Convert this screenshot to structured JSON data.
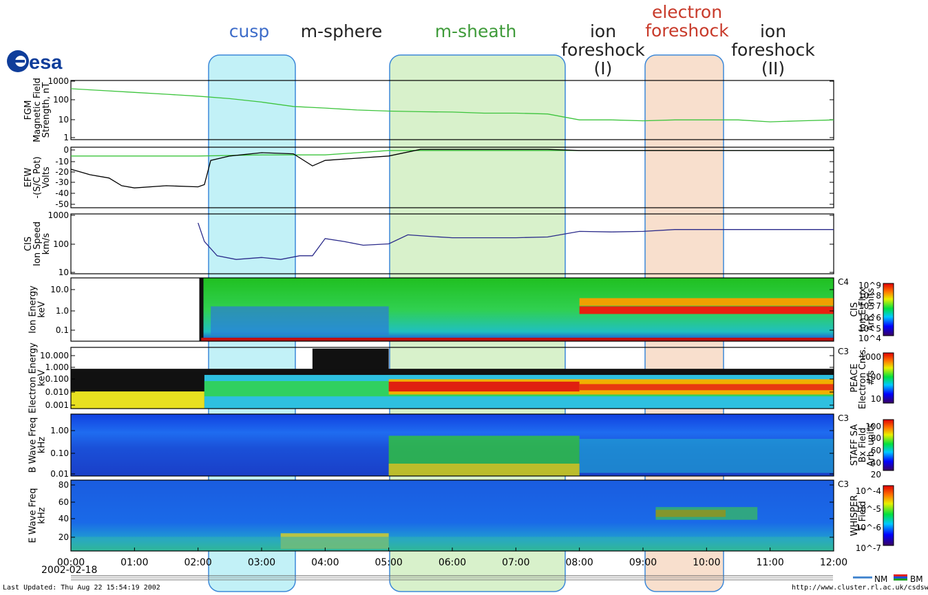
{
  "logo": {
    "text": "esa"
  },
  "regions": [
    {
      "label": "cusp",
      "color": "#3d6cc9",
      "box_fill": "#8fe6f1"
    },
    {
      "label": "m-sphere",
      "color": "#222222",
      "box_fill": ""
    },
    {
      "label": "m-sheath",
      "color": "#3f9b3a",
      "box_fill": "#b8e6a0"
    },
    {
      "label": "ion foreshock (I)",
      "lines": [
        "ion",
        "foreshock",
        "(I)"
      ],
      "color": "#222222",
      "box_fill": ""
    },
    {
      "label": "electron foreshock",
      "lines": [
        "electron",
        "foreshock"
      ],
      "color": "#c83a2a",
      "box_fill": "#f2c4a4"
    },
    {
      "label": "ion foreshock (II)",
      "lines": [
        "ion",
        "foreshock",
        "(II)"
      ],
      "color": "#222222",
      "box_fill": ""
    }
  ],
  "x_ticks": [
    "00:00",
    "01:00",
    "02:00",
    "03:00",
    "04:00",
    "05:00",
    "06:00",
    "07:00",
    "08:00",
    "09:00",
    "10:00",
    "11:00",
    "12:00"
  ],
  "date_label": "2002-02-18",
  "footer": {
    "last_updated": "Last Updated:  Thu Aug 22 15:54:19 2002",
    "url": "http://www.cluster.rl.ac.uk/csdsweb/",
    "nm": "NM",
    "bm": "BM"
  },
  "chart_data": [
    {
      "type": "line",
      "panel": "FGM",
      "ylabel": [
        "FGM",
        "Magnetic Field",
        "Strength, nT"
      ],
      "scale": "log",
      "ylim": [
        1,
        1000
      ],
      "yticks": [
        "1000",
        "100",
        "10",
        "1"
      ],
      "series": [
        {
          "color": "#3cc43c",
          "x_hours": [
            0,
            0.5,
            1,
            1.5,
            2,
            2.5,
            3,
            3.5,
            4,
            4.5,
            5,
            5.5,
            6,
            6.5,
            7,
            7.5,
            8,
            8.5,
            9,
            9.5,
            10,
            10.5,
            11,
            11.5,
            12
          ],
          "values": [
            380,
            310,
            250,
            200,
            160,
            120,
            80,
            48,
            40,
            32,
            28,
            26,
            25,
            22,
            22,
            20,
            10,
            10,
            9,
            10,
            10,
            10,
            8,
            9,
            10
          ]
        }
      ]
    },
    {
      "type": "line",
      "panel": "EFW",
      "ylabel": [
        "EFW",
        "-(S/C Pot)",
        "Volts"
      ],
      "scale": "linear",
      "ylim": [
        -55,
        0
      ],
      "yticks": [
        "0",
        "-10",
        "-20",
        "-30",
        "-40",
        "-50"
      ],
      "series": [
        {
          "color": "#3cc43c",
          "x_hours": [
            0,
            1,
            2,
            3,
            4,
            5,
            6,
            7,
            8,
            9,
            10,
            11,
            12
          ],
          "values": [
            -8,
            -8,
            -8,
            -7,
            -7,
            -3,
            -3,
            -3,
            -3,
            -3,
            -3,
            -3,
            -3
          ]
        },
        {
          "color": "#000000",
          "x_hours": [
            0,
            0.3,
            0.6,
            0.8,
            1,
            1.5,
            2,
            2.1,
            2.2,
            2.5,
            3,
            3.5,
            3.8,
            4,
            4.5,
            5,
            5.5,
            6,
            6.5,
            7,
            7.5,
            8,
            9,
            10,
            11,
            12
          ],
          "values": [
            -20,
            -25,
            -28,
            -35,
            -37,
            -35,
            -36,
            -34,
            -12,
            -8,
            -5,
            -6,
            -17,
            -12,
            -10,
            -8,
            -2,
            -2,
            -2,
            -2,
            -2,
            -3,
            -3,
            -3,
            -3,
            -3
          ]
        }
      ]
    },
    {
      "type": "line",
      "panel": "CIS",
      "ylabel": [
        "CIS",
        "Ion Speed",
        "km/s"
      ],
      "scale": "log",
      "ylim": [
        10,
        1000
      ],
      "yticks": [
        "1000",
        "100",
        "10"
      ],
      "series": [
        {
          "color": "#2a2a8a",
          "x_hours": [
            2.0,
            2.1,
            2.3,
            2.6,
            3.0,
            3.3,
            3.6,
            3.8,
            4.0,
            4.3,
            4.6,
            5.0,
            5.3,
            5.6,
            6.0,
            6.5,
            7.0,
            7.5,
            8.0,
            8.5,
            9.0,
            9.5,
            10,
            11,
            12
          ],
          "values": [
            500,
            120,
            40,
            30,
            35,
            30,
            40,
            40,
            150,
            120,
            90,
            100,
            200,
            180,
            160,
            160,
            160,
            170,
            260,
            250,
            260,
            300,
            300,
            300,
            300
          ]
        }
      ]
    },
    {
      "type": "heatmap",
      "panel": "CIS ion spectrogram",
      "ylabel": [
        "Ion  Energy",
        "keV"
      ],
      "yticks": [
        "10.0",
        "1.0",
        "0.1"
      ],
      "spacecraft": "C4",
      "colorbar_label": [
        "CIS",
        "Ion E-Flux",
        "Arb. units"
      ],
      "colorbar_ticks": [
        "10^9",
        "10^8",
        "10^7",
        "10^6",
        "10^5",
        "10^4"
      ]
    },
    {
      "type": "heatmap",
      "panel": "PEACE electron spectrogram",
      "ylabel": [
        "Electron Energy",
        "keV"
      ],
      "yticks": [
        "10.000",
        "1.000",
        "0.100",
        "0.010",
        "0.001"
      ],
      "spacecraft": "C3",
      "colorbar_label": [
        "PEACE",
        "Electron Cnts.",
        "#/s"
      ],
      "colorbar_ticks": [
        "1000",
        "100",
        "10"
      ]
    },
    {
      "type": "heatmap",
      "panel": "STAFF SA",
      "ylabel": [
        "B  Wave Freq",
        "kHz"
      ],
      "yticks": [
        "1.00",
        "0.10",
        "0.01"
      ],
      "spacecraft": "C3",
      "colorbar_label": [
        "STAFF SA",
        "Bx Field",
        "Arb. units"
      ],
      "colorbar_ticks": [
        "100",
        "80",
        "60",
        "40",
        "20"
      ]
    },
    {
      "type": "heatmap",
      "panel": "WHISPER",
      "ylabel": [
        "E  Wave Freq",
        "kHz"
      ],
      "yticks": [
        "80",
        "60",
        "40",
        "20"
      ],
      "spacecraft": "C3",
      "colorbar_label": [
        "WHISPER",
        "E Field"
      ],
      "colorbar_ticks": [
        "10^-4",
        "10^-5",
        "10^-6",
        "10^-7"
      ]
    }
  ]
}
